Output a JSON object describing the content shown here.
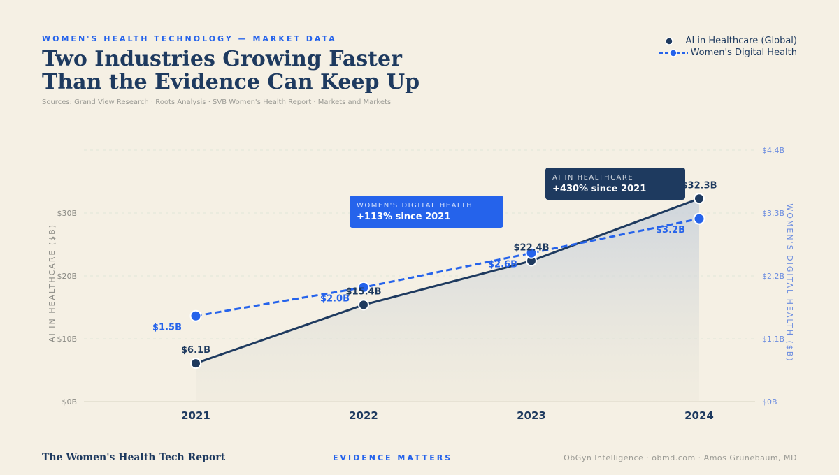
{
  "header": {
    "eyebrow": "WOMEN'S HEALTH TECHNOLOGY — MARKET DATA",
    "title_line1": "Two Industries Growing Faster",
    "title_line2": "Than the Evidence Can Keep Up",
    "sources": "Sources: Grand View Research · Roots Analysis · SVB Women's Health Report · Markets and Markets"
  },
  "legend": {
    "ai_label": "AI in Healthcare (Global)",
    "wdh_label": "Women's Digital Health"
  },
  "callouts": {
    "wdh": {
      "label": "WOMEN'S DIGITAL HEALTH",
      "value": "+113% since 2021"
    },
    "ai": {
      "label": "AI IN HEALTHCARE",
      "value": "+430% since 2021"
    }
  },
  "footer": {
    "left": "The Women's Health Tech Report",
    "center": "EVIDENCE MATTERS",
    "right": "ObGyn Intelligence · obmd.com · Amos Grunebaum, MD"
  },
  "colors": {
    "ai": "#1e3a5f",
    "wdh": "#2563eb",
    "background": "#f5f0e4",
    "axis_left": "#8a8a84",
    "axis_right": "#6b8ce0"
  },
  "chart_data": {
    "type": "line",
    "categories": [
      "2021",
      "2022",
      "2023",
      "2024"
    ],
    "series": [
      {
        "name": "AI in Healthcare (Global)",
        "axis": "left",
        "values": [
          6.1,
          15.4,
          22.4,
          32.3
        ],
        "labels": [
          "$6.1B",
          "$15.4B",
          "$22.4B",
          "$32.3B"
        ]
      },
      {
        "name": "Women's Digital Health",
        "axis": "right",
        "values": [
          1.5,
          2.0,
          2.6,
          3.2
        ],
        "labels": [
          "$1.5B",
          "$2.0B",
          "$2.6B",
          "$3.2B"
        ]
      }
    ],
    "left_axis": {
      "label": "AI IN HEALTHCARE ($B)",
      "ticks": [
        0,
        10,
        20,
        30
      ],
      "tick_labels": [
        "$0B",
        "$10B",
        "$20B",
        "$30B"
      ],
      "ylim": [
        0,
        40
      ]
    },
    "right_axis": {
      "label": "WOMEN'S DIGITAL HEALTH ($B)",
      "ticks": [
        0,
        1.1,
        2.2,
        3.3,
        4.4
      ],
      "tick_labels": [
        "$0B",
        "$1.1B",
        "$2.2B",
        "$3.3B",
        "$4.4B"
      ],
      "ylim": [
        0,
        4.4
      ]
    },
    "grid": true
  }
}
